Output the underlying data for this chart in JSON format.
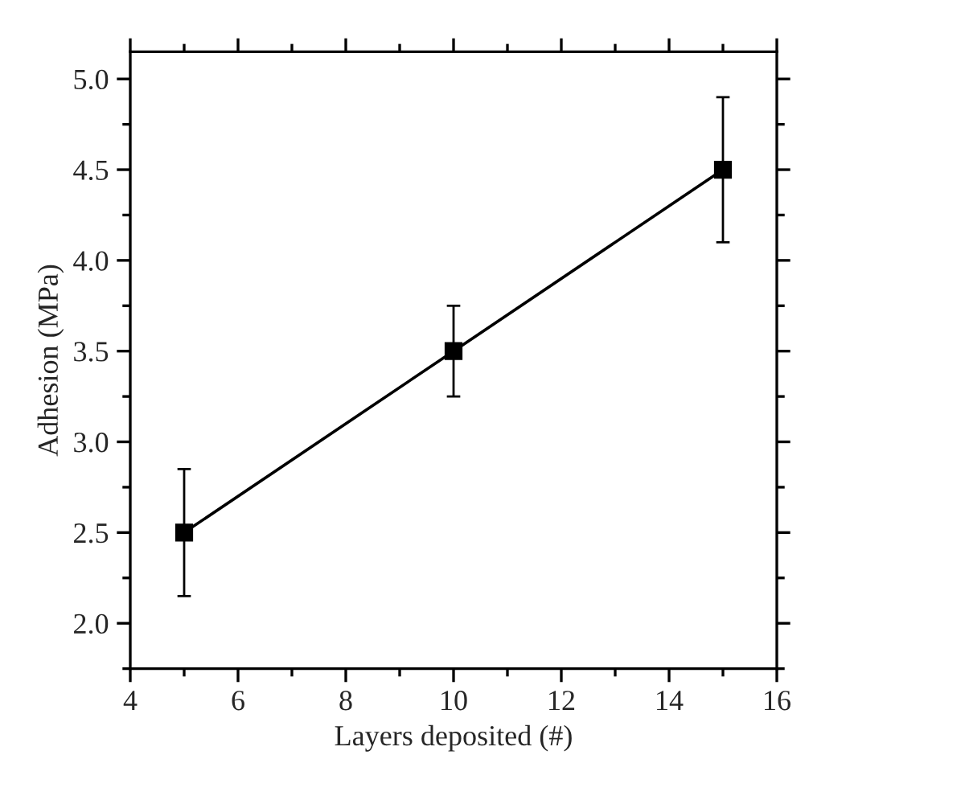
{
  "chart_data": {
    "type": "line",
    "xlabel": "Layers deposited (#)",
    "ylabel": "Adhesion (MPa)",
    "x": [
      5,
      10,
      15
    ],
    "series": [
      {
        "color": "#000000",
        "values": [
          2.5,
          3.5,
          4.5
        ],
        "errors": [
          0.35,
          0.25,
          0.4
        ]
      }
    ],
    "marker": "square",
    "line_style": "solid",
    "grid": false,
    "legend": false,
    "xlim": [
      4,
      16
    ],
    "xticks": [
      4,
      6,
      8,
      10,
      12,
      14,
      16
    ],
    "ylim": [
      1.75,
      5.15
    ],
    "yticks": [
      {
        "value": 2.0,
        "label": "2.0"
      },
      {
        "value": 2.5,
        "label": "2.5"
      },
      {
        "value": 3.0,
        "label": "3.0"
      },
      {
        "value": 3.5,
        "label": "3.5"
      },
      {
        "value": 4.0,
        "label": "4.0"
      },
      {
        "value": 4.5,
        "label": "4.5"
      },
      {
        "value": 5.0,
        "label": "5.0"
      }
    ]
  }
}
